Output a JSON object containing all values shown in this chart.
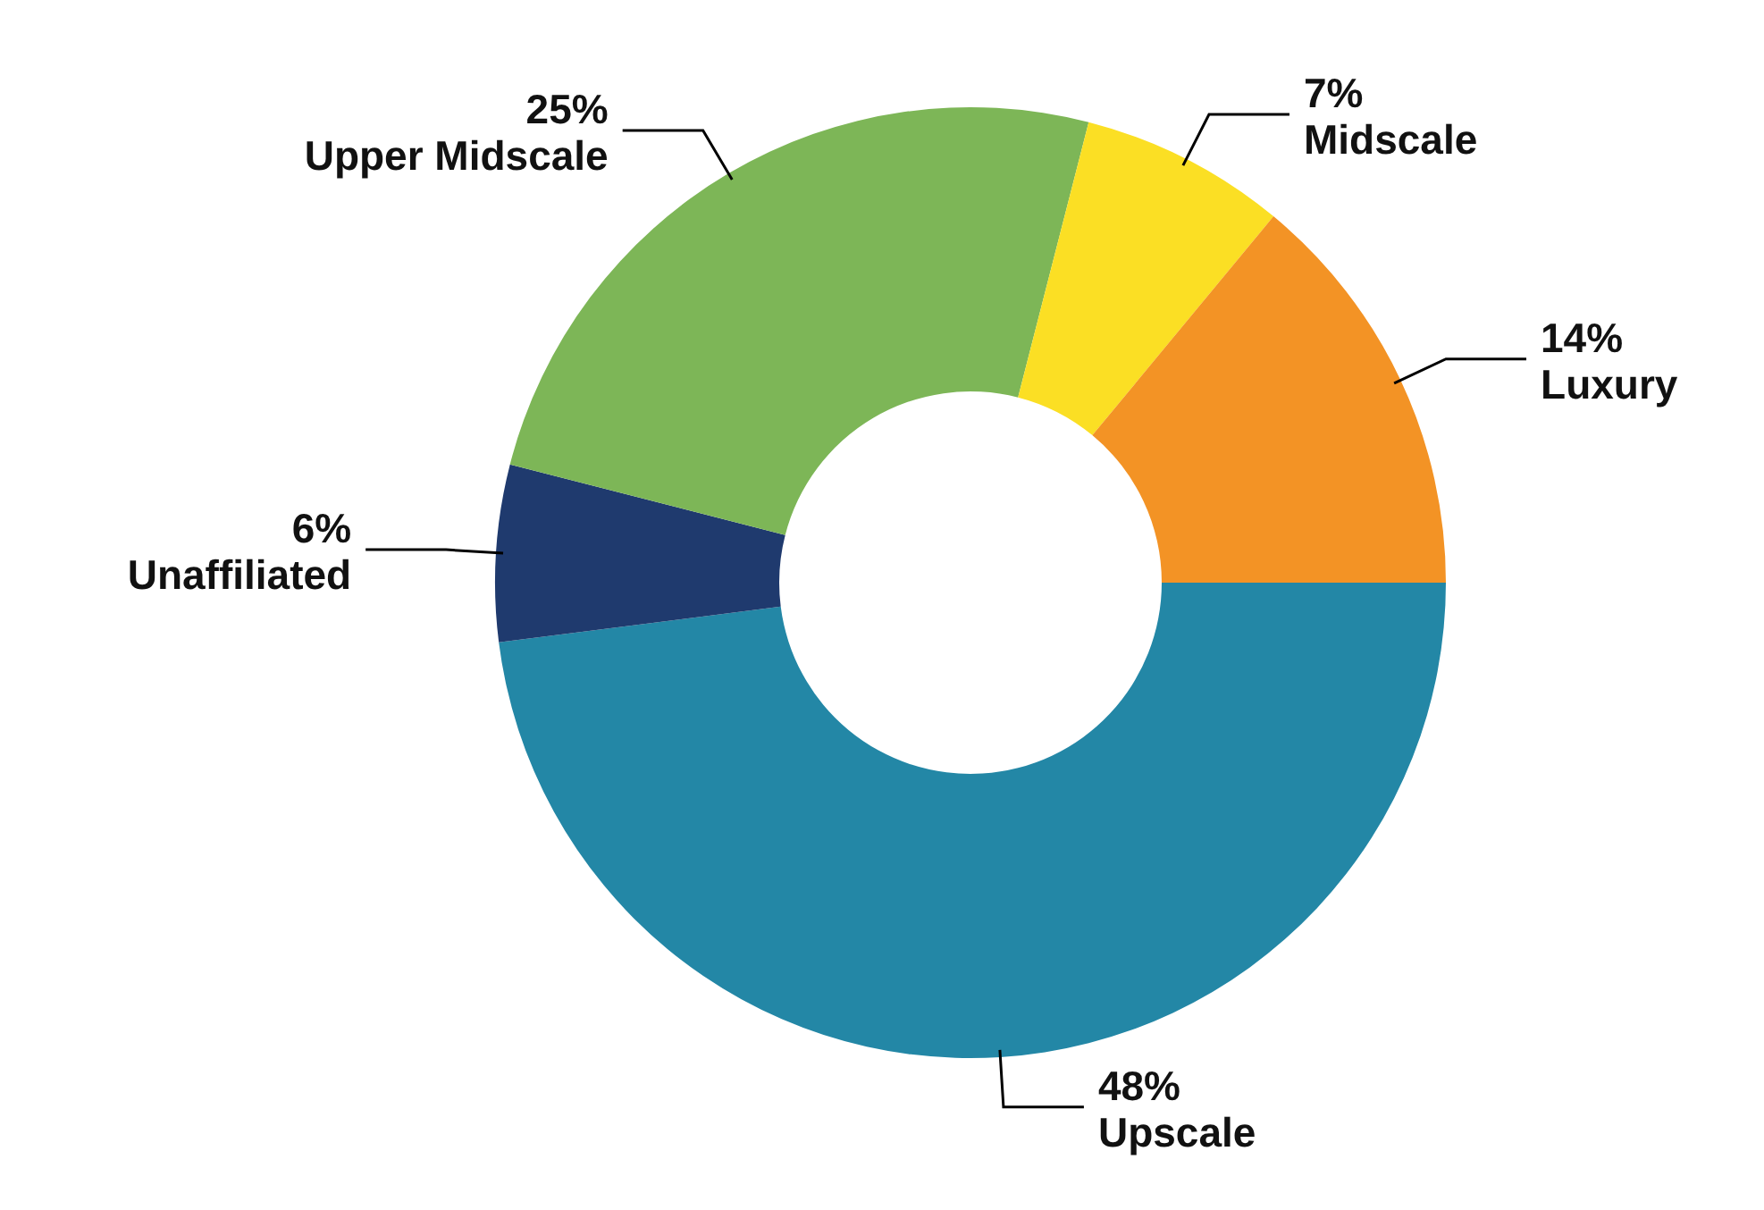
{
  "chart_data": {
    "type": "donut",
    "categories": [
      "Upscale",
      "Unaffiliated",
      "Upper Midscale",
      "Midscale",
      "Luxury"
    ],
    "values": [
      48,
      6,
      25,
      7,
      14
    ],
    "value_labels": [
      "48%",
      "6%",
      "25%",
      "7%",
      "14%"
    ],
    "colors": [
      "#2387a6",
      "#1f3a6e",
      "#7db657",
      "#fbdf24",
      "#f39325"
    ]
  }
}
